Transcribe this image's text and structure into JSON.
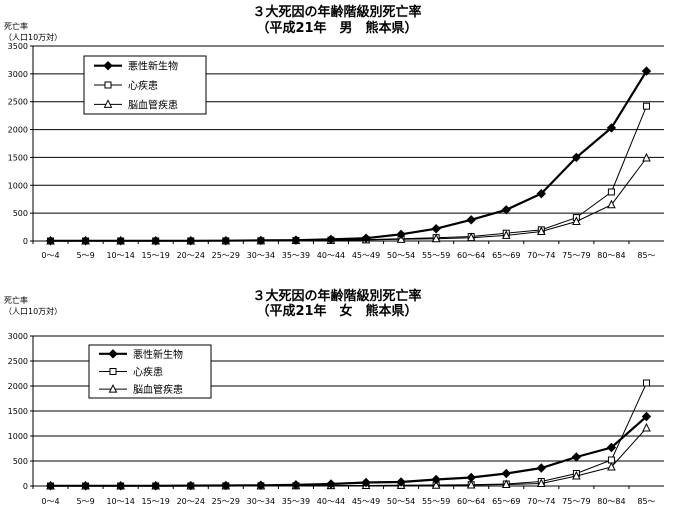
{
  "colors": {
    "series_1": "#000000",
    "series_2": "#000000",
    "series_3": "#000000",
    "background": "#ffffff",
    "grid": "#000000"
  },
  "chart_data": [
    {
      "type": "line",
      "title": "３大死因の年齢階級別死亡率",
      "subtitle": "（平成21年　男　熊本県）",
      "ylabel": "死亡率",
      "ylabel_unit": "（人口10万対）",
      "xlabel": "",
      "ylim": [
        0,
        3500
      ],
      "yticks": [
        "0",
        "500",
        "1000",
        "1500",
        "2000",
        "2500",
        "3000",
        "3500"
      ],
      "grid": true,
      "legend_position": "top-left",
      "categories": [
        "0～4",
        "5～9",
        "10～14",
        "15～19",
        "20～24",
        "25～29",
        "30～34",
        "35～39",
        "40～44",
        "45～49",
        "50～54",
        "55～59",
        "60～64",
        "65～69",
        "70～74",
        "75～79",
        "80～84",
        "85～"
      ],
      "series": [
        {
          "name": "悪性新生物",
          "marker": "filled-diamond",
          "bold": true,
          "values": [
            3,
            3,
            3,
            3,
            4,
            5,
            10,
            15,
            30,
            50,
            120,
            220,
            380,
            560,
            850,
            1500,
            2030,
            3050
          ]
        },
        {
          "name": "心疾患",
          "marker": "open-square",
          "bold": false,
          "values": [
            0,
            0,
            0,
            0,
            1,
            2,
            4,
            8,
            15,
            25,
            40,
            60,
            80,
            140,
            200,
            420,
            880,
            2420
          ]
        },
        {
          "name": "脳血管疾患",
          "marker": "open-triangle",
          "bold": false,
          "values": [
            0,
            0,
            0,
            0,
            1,
            2,
            4,
            8,
            12,
            20,
            30,
            40,
            60,
            100,
            170,
            350,
            650,
            1490
          ]
        }
      ]
    },
    {
      "type": "line",
      "title": "３大死因の年齢階級別死亡率",
      "subtitle": "（平成21年　女　熊本県）",
      "ylabel": "死亡率",
      "ylabel_unit": "（人口10万対）",
      "xlabel": "",
      "ylim": [
        0,
        3000
      ],
      "yticks": [
        "0",
        "500",
        "1000",
        "1500",
        "2000",
        "2500",
        "3000"
      ],
      "grid": true,
      "legend_position": "top-left",
      "categories": [
        "0～4",
        "5～9",
        "10～14",
        "15～19",
        "20～24",
        "25～29",
        "30～34",
        "35～39",
        "40～44",
        "45～49",
        "50～54",
        "55～59",
        "60～64",
        "65～69",
        "70～74",
        "75～79",
        "80～84",
        "85～"
      ],
      "series": [
        {
          "name": "悪性新生物",
          "marker": "filled-diamond",
          "bold": true,
          "values": [
            3,
            3,
            3,
            5,
            8,
            10,
            15,
            25,
            40,
            70,
            80,
            130,
            170,
            250,
            360,
            580,
            770,
            1390
          ]
        },
        {
          "name": "心疾患",
          "marker": "open-square",
          "bold": false,
          "values": [
            0,
            0,
            0,
            0,
            1,
            2,
            3,
            5,
            8,
            10,
            15,
            20,
            25,
            40,
            90,
            250,
            520,
            2060
          ]
        },
        {
          "name": "脳血管疾患",
          "marker": "open-triangle",
          "bold": false,
          "values": [
            0,
            0,
            0,
            0,
            1,
            2,
            3,
            5,
            8,
            10,
            12,
            15,
            20,
            30,
            50,
            200,
            380,
            1160
          ]
        }
      ]
    }
  ]
}
